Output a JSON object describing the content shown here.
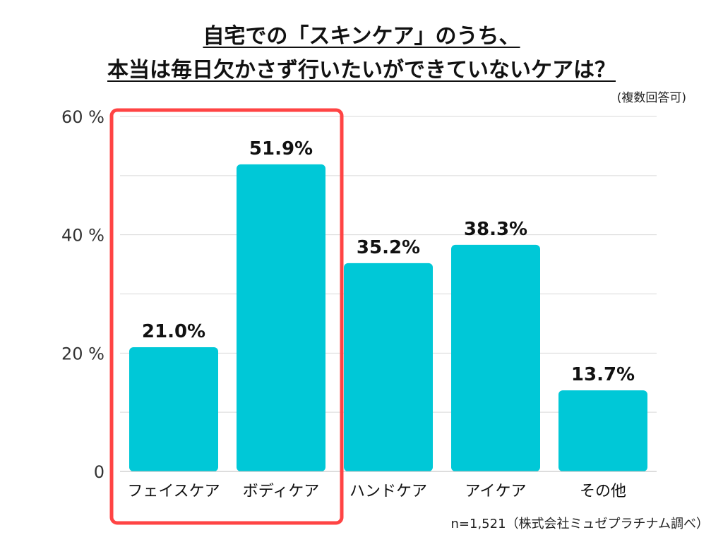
{
  "title_line1": "自宅での「スキンケア」のうち、",
  "title_line2": "本当は毎日欠かさず行いたいができていないケアは？",
  "note": "(複数回答可)",
  "footnote": "n=1,521（株式会社ミュゼプラチナム調べ）",
  "colors": {
    "bar": "#00c8d7",
    "highlight": "#ff4444",
    "grid": "#d9d9d9"
  },
  "chart_data": {
    "type": "bar",
    "title": "自宅での「スキンケア」のうち、本当は毎日欠かさず行いたいができていないケアは？",
    "categories": [
      "フェイスケア",
      "ボディケア",
      "ハンドケア",
      "アイケア",
      "その他"
    ],
    "values": [
      21.0,
      51.9,
      35.2,
      38.3,
      13.7
    ],
    "data_labels": [
      "21.0%",
      "51.9%",
      "35.2%",
      "38.3%",
      "13.7%"
    ],
    "ytick_values": [
      0,
      20,
      40,
      60
    ],
    "ytick_labels": [
      "0",
      "20 %",
      "40 %",
      "60 %"
    ],
    "ylim": [
      0,
      60
    ],
    "grid": true,
    "highlight_categories": [
      "フェイスケア",
      "ボディケア"
    ],
    "xlabel": "",
    "ylabel": ""
  }
}
